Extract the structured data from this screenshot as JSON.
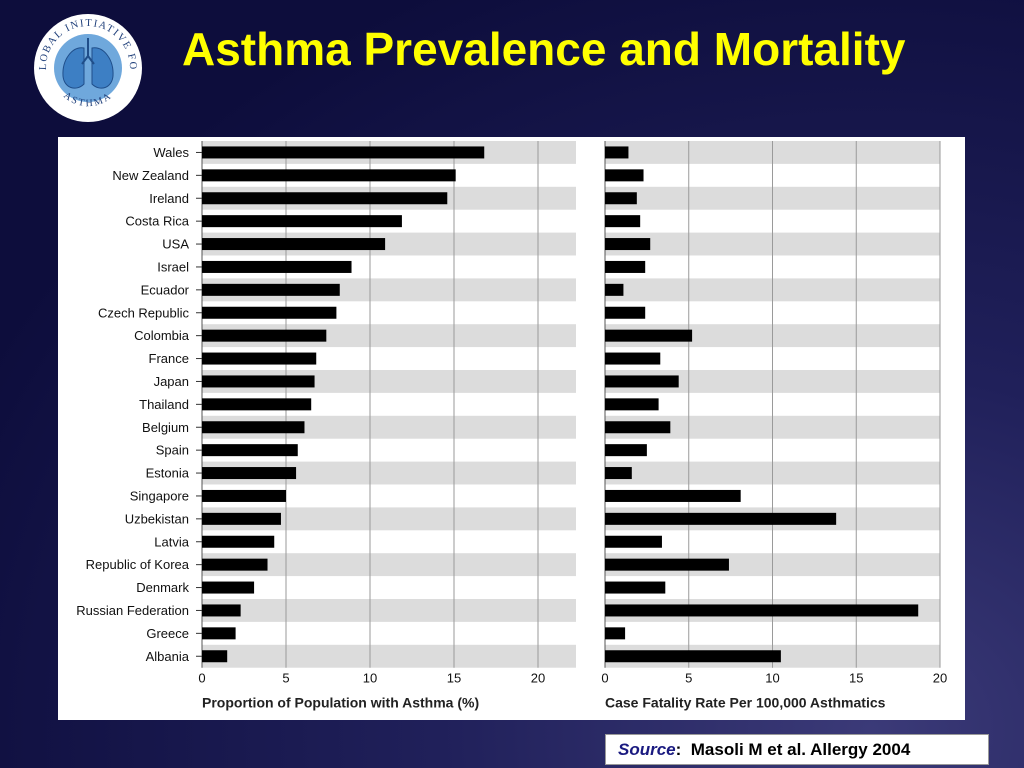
{
  "slide": {
    "title": "Asthma Prevalence and Mortality",
    "logo": {
      "top_text": "GLOBAL INITIATIVE FOR",
      "bottom_text": "ASTHMA",
      "icon": "lungs-globe-icon"
    },
    "source": {
      "label": "Source",
      "separator": ":",
      "citation": "Masoli M et al.  Allergy 2004"
    }
  },
  "colors": {
    "background": "#15154a",
    "title": "#ffff00",
    "bar": "#000000",
    "band": "#dcdcdc",
    "grid": "#9a9a9a"
  },
  "chart_data": [
    {
      "type": "bar",
      "orientation": "horizontal",
      "categories": [
        "Wales",
        "New Zealand",
        "Ireland",
        "Costa Rica",
        "USA",
        "Israel",
        "Ecuador",
        "Czech Republic",
        "Colombia",
        "France",
        "Japan",
        "Thailand",
        "Belgium",
        "Spain",
        "Estonia",
        "Singapore",
        "Uzbekistan",
        "Latvia",
        "Republic of Korea",
        "Denmark",
        "Russian Federation",
        "Greece",
        "Albania"
      ],
      "values": [
        16.8,
        15.1,
        14.6,
        11.9,
        10.9,
        8.9,
        8.2,
        8.0,
        7.4,
        6.8,
        6.7,
        6.5,
        6.1,
        5.7,
        5.6,
        5.0,
        4.7,
        4.3,
        3.9,
        3.1,
        2.3,
        2.0,
        1.5
      ],
      "xlabel": "Proportion of Population with Asthma (%)",
      "xlim": [
        0,
        20
      ],
      "xticks": [
        0,
        5,
        10,
        15,
        20
      ],
      "grid": true,
      "alternating_bands": true
    },
    {
      "type": "bar",
      "orientation": "horizontal",
      "categories": [
        "Wales",
        "New Zealand",
        "Ireland",
        "Costa Rica",
        "USA",
        "Israel",
        "Ecuador",
        "Czech Republic",
        "Colombia",
        "France",
        "Japan",
        "Thailand",
        "Belgium",
        "Spain",
        "Estonia",
        "Singapore",
        "Uzbekistan",
        "Latvia",
        "Republic of Korea",
        "Denmark",
        "Russian Federation",
        "Greece",
        "Albania"
      ],
      "values": [
        1.4,
        2.3,
        1.9,
        2.1,
        2.7,
        2.4,
        1.1,
        2.4,
        5.2,
        3.3,
        4.4,
        3.2,
        3.9,
        2.5,
        1.6,
        8.1,
        13.8,
        3.4,
        7.4,
        3.6,
        18.7,
        1.2,
        10.5
      ],
      "xlabel": "Case Fatality Rate Per 100,000 Asthmatics",
      "xlim": [
        0,
        20
      ],
      "xticks": [
        0,
        5,
        10,
        15,
        20
      ],
      "grid": true,
      "alternating_bands": true
    }
  ]
}
